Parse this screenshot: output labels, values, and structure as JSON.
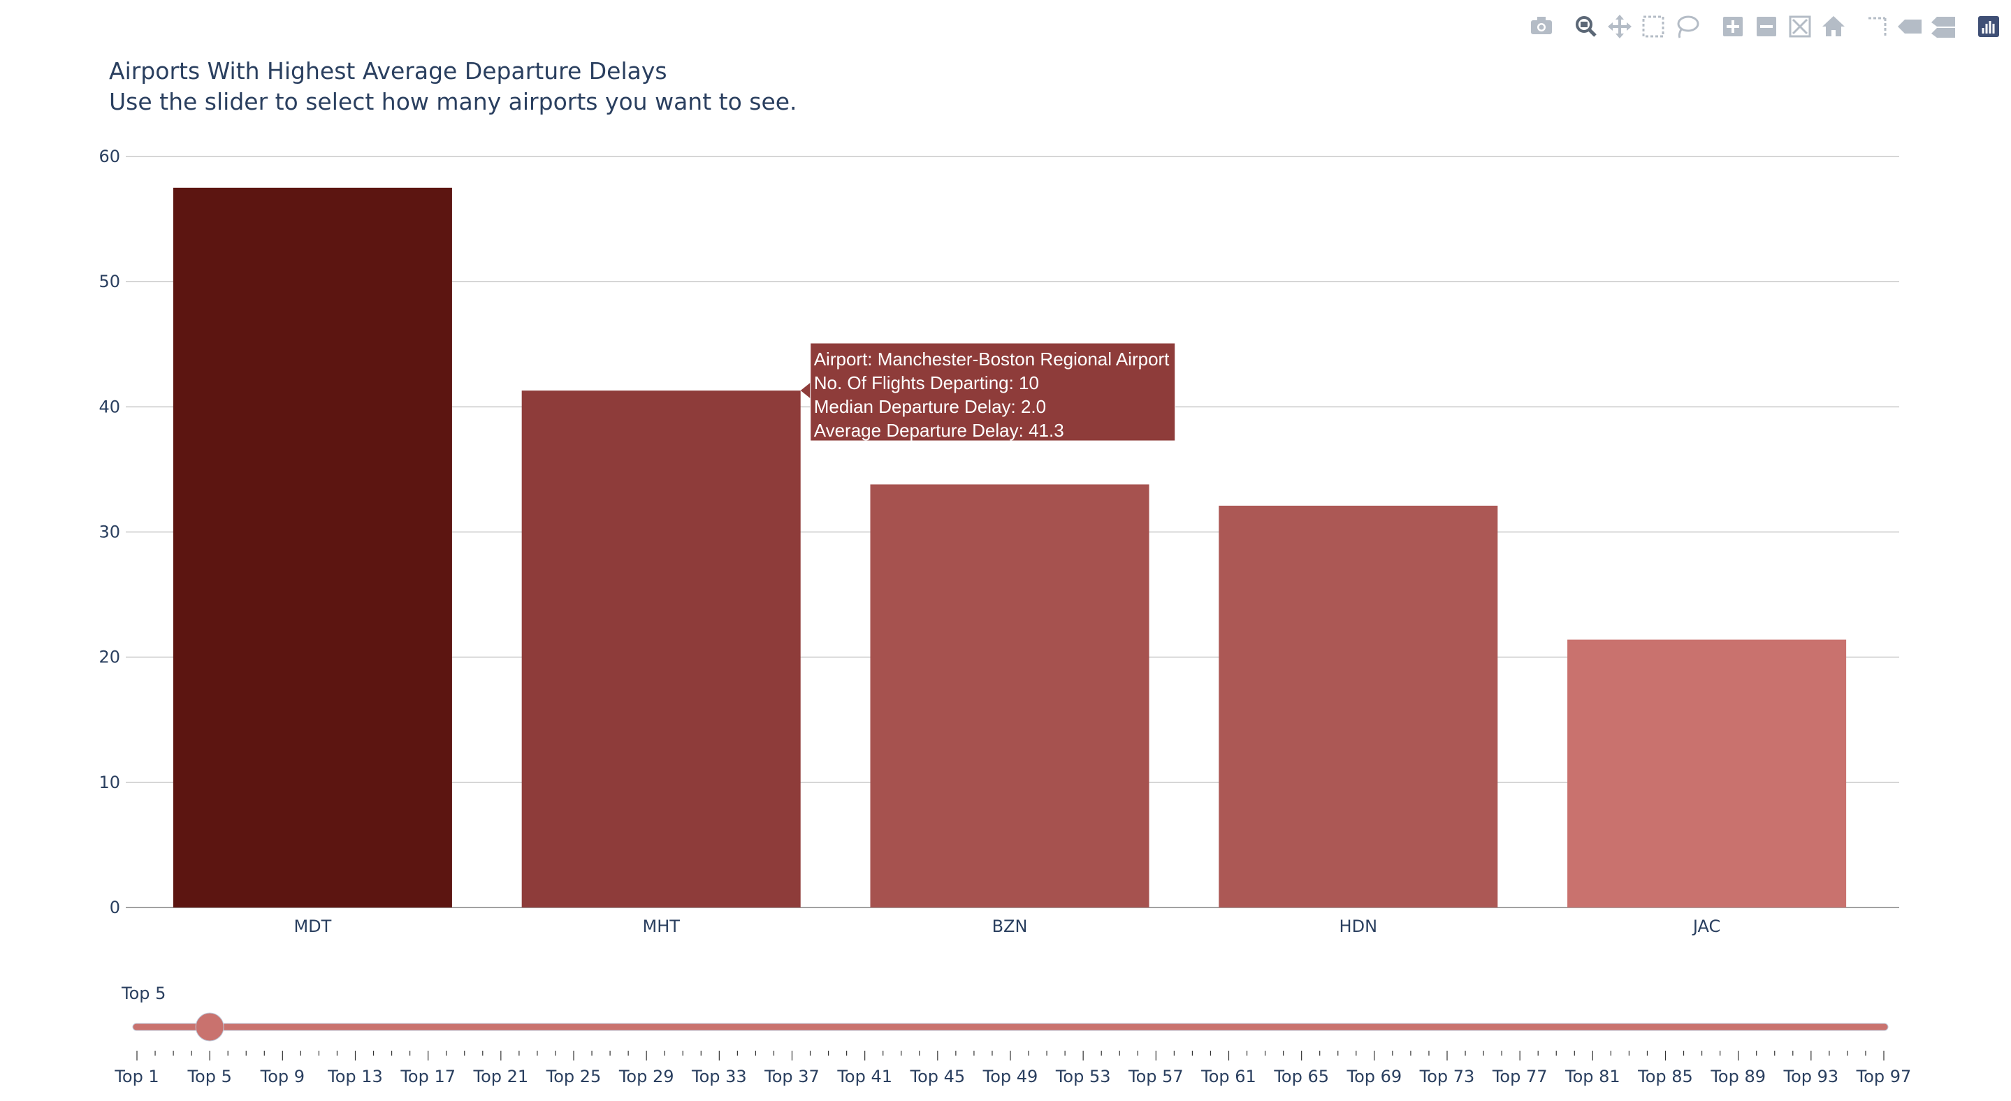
{
  "chart_data": {
    "type": "bar",
    "title": "Airports With Highest Average Departure Delays",
    "subtitle": "Use the slider to select how many airports you want to see.",
    "categories": [
      "MDT",
      "MHT",
      "BZN",
      "HDN",
      "JAC"
    ],
    "values": [
      57.5,
      41.3,
      33.8,
      32.1,
      21.4
    ],
    "bar_colors": [
      "#5c1511",
      "#8e3c3a",
      "#a6524f",
      "#ac5855",
      "#c9726e"
    ],
    "ylim": [
      0,
      60
    ],
    "yticks": [
      0,
      10,
      20,
      30,
      40,
      50,
      60
    ],
    "grid": true,
    "xlabel": "",
    "ylabel": "",
    "hover": {
      "bar_index": 1,
      "lines": [
        "Airport: Manchester-Boston Regional Airport",
        "No. Of Flights Departing: 10",
        "Median Departure Delay: 2.0",
        "Average Departure Delay: 41.3"
      ],
      "color": "#8e3c3a"
    }
  },
  "slider": {
    "current_label": "Top 5",
    "value": 5,
    "min": 1,
    "max": 97,
    "labels": [
      "Top 1",
      "Top 5",
      "Top 9",
      "Top 13",
      "Top 17",
      "Top 21",
      "Top 25",
      "Top 29",
      "Top 33",
      "Top 37",
      "Top 41",
      "Top 45",
      "Top 49",
      "Top 53",
      "Top 57",
      "Top 61",
      "Top 65",
      "Top 69",
      "Top 73",
      "Top 77",
      "Top 81",
      "Top 85",
      "Top 89",
      "Top 93",
      "Top 97"
    ],
    "track_color": "#c9726e",
    "handle_color": "#c9726e"
  },
  "modebar": {
    "icons": [
      "camera-icon",
      "zoom-icon",
      "pan-icon",
      "box-select-icon",
      "lasso-select-icon",
      "zoom-in-icon",
      "zoom-out-icon",
      "autoscale-icon",
      "reset-axes-icon",
      "spike-lines-icon",
      "hover-closest-icon",
      "hover-compare-icon",
      "plotly-logo-icon"
    ],
    "active": "zoom-icon"
  },
  "colors": {
    "text": "#2a3f5f",
    "grid": "#c8c8c8",
    "axis_line": "#444444"
  }
}
